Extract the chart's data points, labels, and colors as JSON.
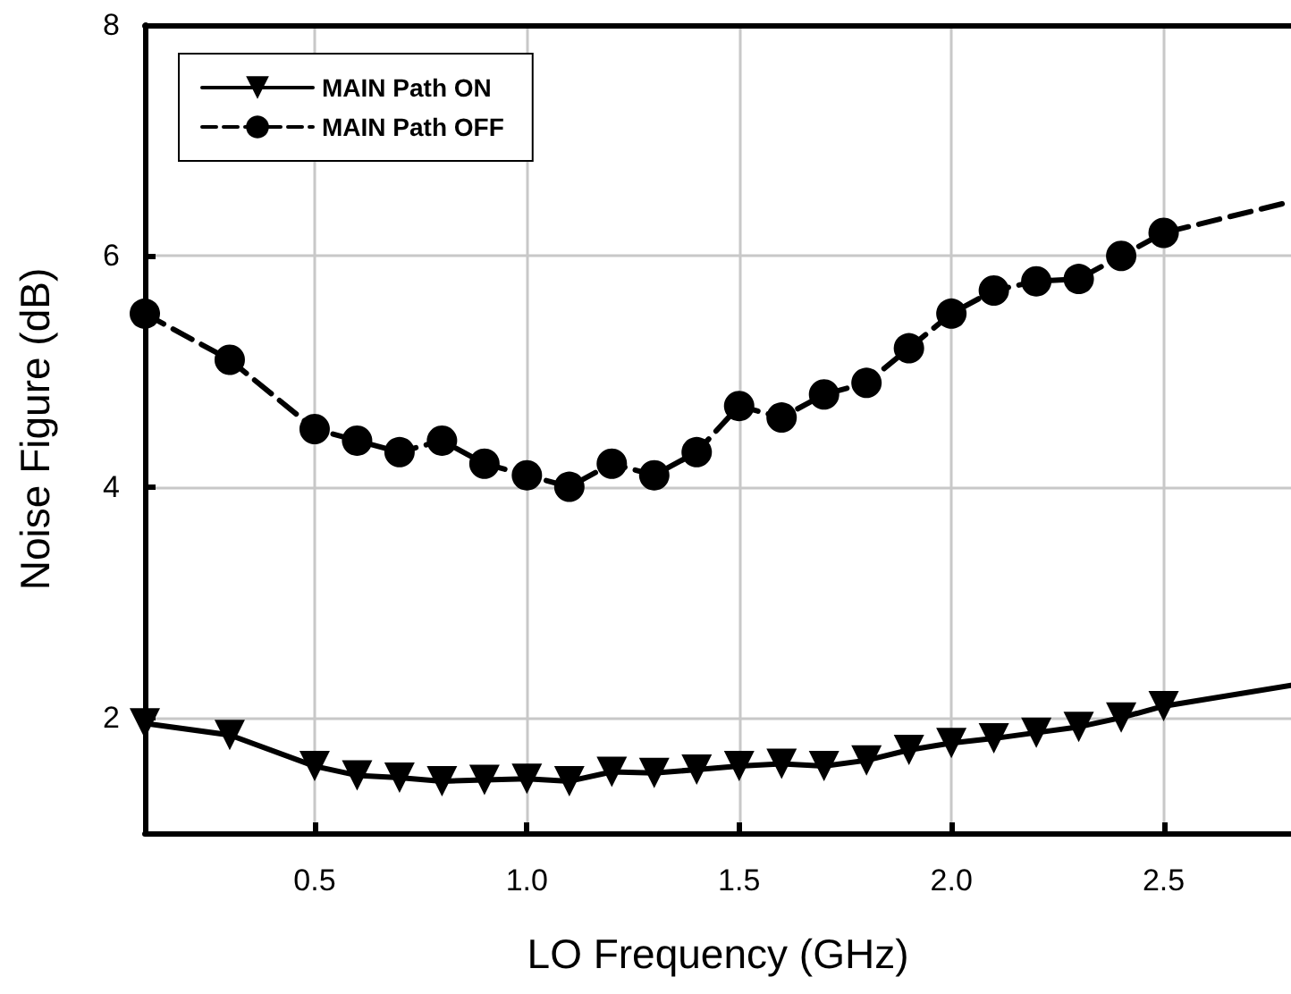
{
  "chart_data": {
    "type": "line",
    "xlabel": "LO Frequency (GHz)",
    "ylabel": "Noise Figure (dB)",
    "xlim": [
      0.1,
      2.8
    ],
    "xticks": [
      0.5,
      {
        "value": 1,
        "label": "1.0"
      },
      1.5,
      {
        "value": 2,
        "label": "2.0"
      },
      2.5
    ],
    "ylim": [
      1,
      8
    ],
    "yticks": [
      2,
      4,
      6,
      8
    ],
    "grid": true,
    "legend": "top left",
    "series": [
      {
        "name": "MAIN Path ON",
        "color": "#000000",
        "marker": "triangle",
        "line_style": "solid",
        "x": [
          0.1,
          0.3,
          0.5,
          0.6,
          0.7,
          0.8,
          0.9,
          1.0,
          1.1,
          1.2,
          1.3,
          1.4,
          1.5,
          1.6,
          1.7,
          1.8,
          1.9,
          2.0,
          2.1,
          2.2,
          2.3,
          2.4,
          2.5,
          2.8
        ],
        "values": [
          1.95,
          1.85,
          1.58,
          1.5,
          1.48,
          1.45,
          1.46,
          1.47,
          1.45,
          1.53,
          1.52,
          1.55,
          1.58,
          1.6,
          1.58,
          1.63,
          1.72,
          1.78,
          1.82,
          1.87,
          1.92,
          2.0,
          2.1,
          2.28
        ]
      },
      {
        "name": "MAIN Path OFF",
        "color": "#000000",
        "marker": "circle",
        "line_style": "dashed",
        "x": [
          0.1,
          0.3,
          0.5,
          0.6,
          0.7,
          0.8,
          0.9,
          1.0,
          1.1,
          1.2,
          1.3,
          1.4,
          1.5,
          1.6,
          1.7,
          1.8,
          1.9,
          2.0,
          2.1,
          2.2,
          2.3,
          2.4,
          2.5,
          2.8
        ],
        "values": [
          5.5,
          5.1,
          4.5,
          4.4,
          4.3,
          4.4,
          4.2,
          4.1,
          4.0,
          4.2,
          4.1,
          4.3,
          4.7,
          4.6,
          4.8,
          4.9,
          5.2,
          5.5,
          5.7,
          5.78,
          5.8,
          6.0,
          6.2,
          6.47
        ]
      }
    ]
  }
}
